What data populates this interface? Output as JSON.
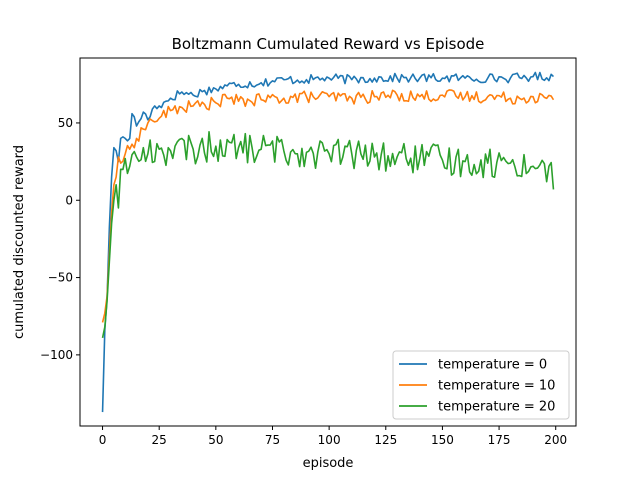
{
  "chart_data": {
    "type": "line",
    "title": "Boltzmann Cumulated Reward vs Episode",
    "xlabel": "episode",
    "ylabel": "cumulated discounted reward",
    "xlim": [
      -9.95,
      208.95
    ],
    "ylim": [
      -146,
      92
    ],
    "xticks": [
      0,
      25,
      50,
      75,
      100,
      125,
      150,
      175,
      200
    ],
    "yticks": [
      -100,
      -50,
      0,
      50
    ],
    "grid": false,
    "legend_position": "lower-right",
    "series": [
      {
        "name": "temperature = 0",
        "color": "#1f77b4",
        "keypoints": [
          [
            0,
            -137
          ],
          [
            1,
            -84
          ],
          [
            2,
            -63
          ],
          [
            3,
            -18
          ],
          [
            4,
            15
          ],
          [
            5,
            34
          ],
          [
            6,
            32
          ],
          [
            7,
            25
          ],
          [
            8,
            40
          ],
          [
            9,
            41
          ],
          [
            10,
            40
          ],
          [
            12,
            40
          ],
          [
            13,
            56
          ],
          [
            15,
            48
          ],
          [
            18,
            57
          ],
          [
            20,
            52
          ],
          [
            23,
            61
          ],
          [
            25,
            61
          ],
          [
            30,
            66
          ],
          [
            35,
            70
          ],
          [
            40,
            68
          ],
          [
            45,
            71
          ],
          [
            50,
            72
          ],
          [
            55,
            74
          ],
          [
            60,
            75
          ],
          [
            70,
            76
          ],
          [
            80,
            78
          ],
          [
            90,
            78
          ],
          [
            100,
            79
          ],
          [
            110,
            78
          ],
          [
            120,
            79
          ],
          [
            130,
            79
          ],
          [
            140,
            79
          ],
          [
            150,
            79
          ],
          [
            160,
            79
          ],
          [
            170,
            79
          ],
          [
            180,
            79
          ],
          [
            190,
            80
          ],
          [
            199,
            80
          ]
        ],
        "noise": 3
      },
      {
        "name": "temperature = 10",
        "color": "#ff7f0e",
        "keypoints": [
          [
            0,
            -79
          ],
          [
            1,
            -73
          ],
          [
            2,
            -62
          ],
          [
            3,
            -35
          ],
          [
            4,
            -8
          ],
          [
            5,
            10
          ],
          [
            6,
            15
          ],
          [
            7,
            28
          ],
          [
            8,
            24
          ],
          [
            10,
            30
          ],
          [
            12,
            33
          ],
          [
            15,
            40
          ],
          [
            18,
            46
          ],
          [
            20,
            50
          ],
          [
            25,
            53
          ],
          [
            30,
            58
          ],
          [
            35,
            60
          ],
          [
            40,
            61
          ],
          [
            45,
            62
          ],
          [
            50,
            63
          ],
          [
            55,
            66
          ],
          [
            60,
            64
          ],
          [
            70,
            65
          ],
          [
            80,
            66
          ],
          [
            90,
            67
          ],
          [
            100,
            67
          ],
          [
            110,
            66
          ],
          [
            120,
            67
          ],
          [
            130,
            68
          ],
          [
            140,
            67
          ],
          [
            150,
            68
          ],
          [
            160,
            67
          ],
          [
            170,
            67
          ],
          [
            180,
            66
          ],
          [
            190,
            67
          ],
          [
            199,
            65
          ]
        ],
        "noise": 4
      },
      {
        "name": "temperature = 20",
        "color": "#2ca02c",
        "keypoints": [
          [
            0,
            -89
          ],
          [
            1,
            -82
          ],
          [
            2,
            -65
          ],
          [
            3,
            -40
          ],
          [
            4,
            -15
          ],
          [
            5,
            0
          ],
          [
            6,
            10
          ],
          [
            7,
            -5
          ],
          [
            8,
            20
          ],
          [
            10,
            27
          ],
          [
            12,
            22
          ],
          [
            15,
            28
          ],
          [
            20,
            30
          ],
          [
            25,
            33
          ],
          [
            30,
            32
          ],
          [
            40,
            33
          ],
          [
            50,
            35
          ],
          [
            60,
            34
          ],
          [
            70,
            33
          ],
          [
            80,
            32
          ],
          [
            90,
            31
          ],
          [
            100,
            30
          ],
          [
            110,
            30
          ],
          [
            120,
            28
          ],
          [
            130,
            28
          ],
          [
            140,
            27
          ],
          [
            150,
            26
          ],
          [
            160,
            25
          ],
          [
            170,
            24
          ],
          [
            180,
            24
          ],
          [
            190,
            22
          ],
          [
            197,
            22
          ],
          [
            199,
            7
          ]
        ],
        "noise": 10
      }
    ]
  }
}
